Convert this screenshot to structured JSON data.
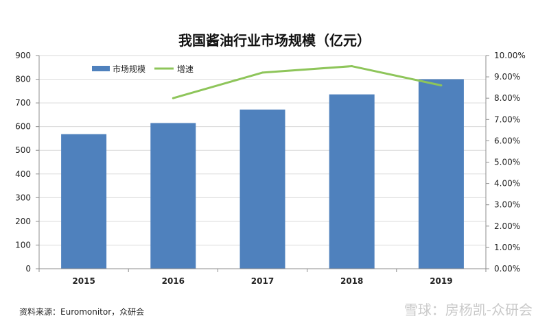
{
  "chart_data": {
    "type": "bar",
    "title": "我国酱油行业市场规模（亿元）",
    "categories": [
      "2015",
      "2016",
      "2017",
      "2018",
      "2019"
    ],
    "series": [
      {
        "name": "市场规模",
        "type": "bar",
        "axis": "left",
        "values": [
          568,
          615,
          672,
          736,
          800
        ],
        "color": "#4f81bd"
      },
      {
        "name": "增速",
        "type": "line",
        "axis": "right",
        "values": [
          null,
          8.0,
          9.2,
          9.5,
          8.6
        ],
        "color": "#8ec55a"
      }
    ],
    "ylim_left": [
      0,
      900
    ],
    "yticks_left": [
      "0",
      "100",
      "200",
      "300",
      "400",
      "500",
      "600",
      "700",
      "800",
      "900"
    ],
    "ylim_right": [
      0,
      10
    ],
    "yticks_right": [
      "0.00%",
      "1.00%",
      "2.00%",
      "3.00%",
      "4.00%",
      "5.00%",
      "6.00%",
      "7.00%",
      "8.00%",
      "9.00%",
      "10.00%"
    ],
    "legend_position": "top-left",
    "grid": true
  },
  "source": "资料来源：Euromonitor，众研会",
  "watermark": "雪球：房杨凯-众研会"
}
